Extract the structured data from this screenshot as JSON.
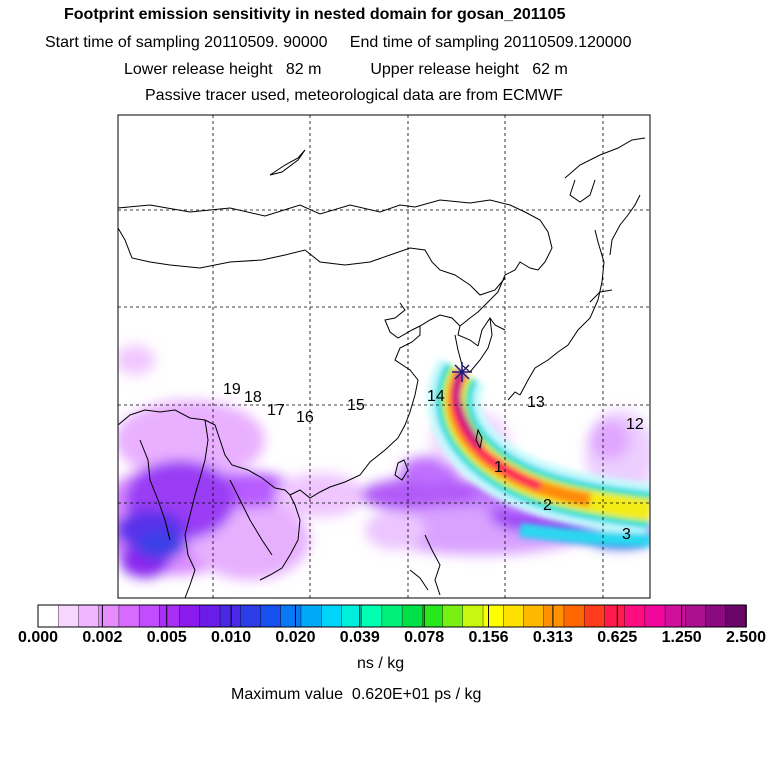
{
  "header": {
    "title": "Footprint emission sensitivity in nested domain for gosan_201105",
    "line2": "Start time of sampling 20110509. 90000     End time of sampling 20110509.120000",
    "line3": "Lower release height   82 m           Upper release height   62 m",
    "line4": "Passive tracer used, meteorological data are from ECMWF"
  },
  "map": {
    "release_site_icon": "star-icon",
    "point_labels": [
      "1",
      "2",
      "3",
      "12",
      "13",
      "14",
      "15",
      "16",
      "17",
      "18",
      "19"
    ]
  },
  "colorbar": {
    "tick_labels": [
      "0.000",
      "0.002",
      "0.005",
      "0.010",
      "0.020",
      "0.039",
      "0.078",
      "0.156",
      "0.313",
      "0.625",
      "1.250",
      "2.500"
    ],
    "colors": [
      "#ffffff",
      "#f6d6ff",
      "#f0b6ff",
      "#e58cff",
      "#d66cff",
      "#c24cff",
      "#a82ef8",
      "#8a1aee",
      "#6a1ce8",
      "#4a28e8",
      "#2c3ce8",
      "#1650ee",
      "#0a78f2",
      "#00a8f8",
      "#00d4f8",
      "#00eedc",
      "#00ffb0",
      "#00f07a",
      "#00e048",
      "#28e81c",
      "#78f014",
      "#c8f810",
      "#ffff00",
      "#ffe000",
      "#ffb800",
      "#ff9000",
      "#ff6800",
      "#ff3c1c",
      "#ff1c4c",
      "#ff0c80",
      "#f0089c",
      "#d0109c",
      "#ac1090",
      "#8a0a80",
      "#6a0668"
    ],
    "unit": "ns / kg",
    "max_value": "Maximum value  0.620E+01 ps / kg"
  }
}
